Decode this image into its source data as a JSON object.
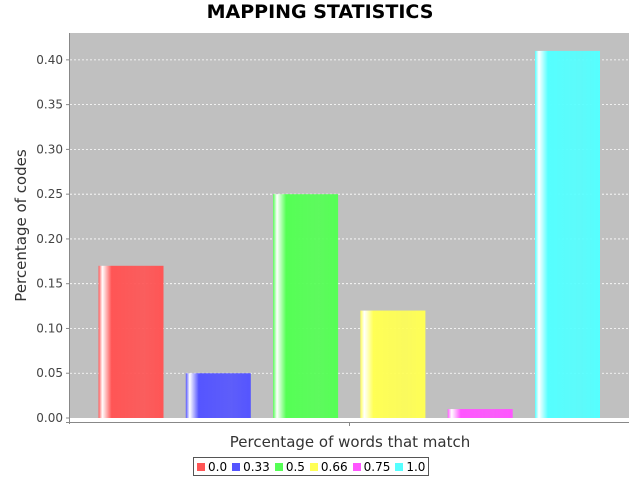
{
  "chart_data": {
    "type": "bar",
    "title": "MAPPING STATISTICS",
    "xlabel": "Percentage of words that match",
    "ylabel": "Percentage of codes",
    "ylim": [
      0,
      0.43
    ],
    "yticks": [
      "0.00",
      "0.05",
      "0.10",
      "0.15",
      "0.20",
      "0.25",
      "0.30",
      "0.35",
      "0.40"
    ],
    "categories": [
      "0.0",
      "0.33",
      "0.5",
      "0.66",
      "0.75",
      "1.0"
    ],
    "values": [
      0.17,
      0.05,
      0.25,
      0.12,
      0.01,
      0.41
    ],
    "colors": [
      "#ff5555",
      "#5555ff",
      "#55ff55",
      "#ffff55",
      "#ff55ff",
      "#55ffff"
    ],
    "grid": true,
    "legend_position": "bottom",
    "plot_background": "#c0c0c0"
  }
}
